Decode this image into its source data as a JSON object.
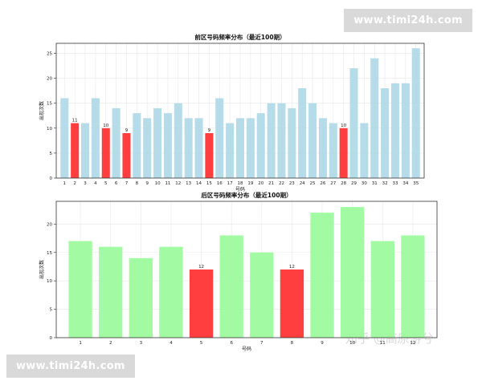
{
  "watermarks": {
    "top": "www.timi24h.com",
    "bottom": "www.timi24h.com",
    "zhihu": "知乎 @高原游兮"
  },
  "colors": {
    "front_bar": "#add8e6",
    "back_bar": "#98fb98",
    "highlight": "#ff2a2a",
    "grid": "#e8e8e8"
  },
  "chart_data": [
    {
      "type": "bar",
      "title": "前区号码频率分布（最近100期）",
      "xlabel": "号码",
      "ylabel": "出现次数",
      "ylim": [
        0,
        27
      ],
      "yticks": [
        0,
        5,
        10,
        15,
        20,
        25
      ],
      "categories": [
        "1",
        "2",
        "3",
        "4",
        "5",
        "6",
        "7",
        "8",
        "9",
        "10",
        "11",
        "12",
        "13",
        "14",
        "15",
        "16",
        "17",
        "18",
        "19",
        "20",
        "21",
        "22",
        "23",
        "24",
        "25",
        "26",
        "27",
        "28",
        "29",
        "30",
        "31",
        "32",
        "33",
        "34",
        "35"
      ],
      "values": [
        16,
        11,
        11,
        16,
        10,
        14,
        9,
        13,
        12,
        14,
        13,
        15,
        12,
        12,
        9,
        16,
        11,
        12,
        12,
        13,
        15,
        15,
        14,
        18,
        15,
        12,
        11,
        10,
        22,
        11,
        24,
        18,
        19,
        19,
        26
      ],
      "highlighted": [
        "2",
        "5",
        "7",
        "15",
        "28"
      ],
      "highlight_labels": [
        "11",
        "10",
        "9",
        "9",
        "10"
      ],
      "grid": true
    },
    {
      "type": "bar",
      "title": "后区号码频率分布（最近100期）",
      "xlabel": "号码",
      "ylabel": "出现次数",
      "ylim": [
        0,
        24
      ],
      "yticks": [
        0,
        5,
        10,
        15,
        20
      ],
      "categories": [
        "1",
        "2",
        "3",
        "4",
        "5",
        "6",
        "7",
        "8",
        "9",
        "10",
        "11",
        "12"
      ],
      "values": [
        17,
        16,
        14,
        16,
        12,
        18,
        15,
        12,
        22,
        23,
        17,
        18
      ],
      "highlighted": [
        "5",
        "8"
      ],
      "highlight_labels": [
        "12",
        "12"
      ],
      "grid": true
    }
  ]
}
